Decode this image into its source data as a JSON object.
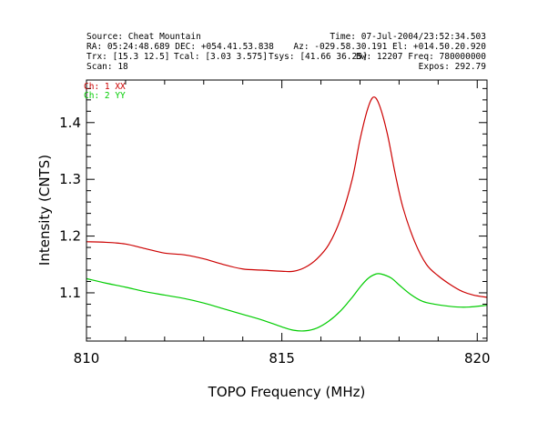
{
  "header": {
    "source": "Source: Cheat Mountain",
    "time": "Time: 07-Jul-2004/23:52:34.503",
    "ra_dec": "RA: 05:24:48.689 DEC: +054.41.53.838",
    "az_el": "Az: -029.58.30.191 El: +014.50.20.920",
    "trx": "Trx: [15.3 12.5]",
    "tcal": "Tcal: [3.03 3.575]",
    "tsys": "Tsys: [41.66 36.25]",
    "bw_freq": "Bw: 12207 Freq: 780000000",
    "scan": "Scan: 18",
    "expos": "Expos: 292.79"
  },
  "chart_data": {
    "type": "line",
    "xlabel": "TOPO Frequency (MHz)",
    "ylabel": "Intensity (CNTS)",
    "xlim": [
      810.0,
      820.25
    ],
    "ylim": [
      1.015,
      1.475
    ],
    "xticks": [
      810,
      815,
      820
    ],
    "yticks": [
      1.1,
      1.2,
      1.3,
      1.4
    ],
    "legend_position": "top-left",
    "series": [
      {
        "name": "Ch: 1 XX",
        "color": "#cc0000",
        "x": [
          810.0,
          810.5,
          811.0,
          811.5,
          812.0,
          812.5,
          813.0,
          813.5,
          814.0,
          814.5,
          815.0,
          815.3,
          815.6,
          815.9,
          816.2,
          816.5,
          816.8,
          817.0,
          817.2,
          817.35,
          817.5,
          817.7,
          817.9,
          818.1,
          818.4,
          818.7,
          819.0,
          819.3,
          819.6,
          819.9,
          820.25
        ],
        "y": [
          1.19,
          1.189,
          1.186,
          1.178,
          1.17,
          1.167,
          1.16,
          1.15,
          1.142,
          1.14,
          1.138,
          1.138,
          1.145,
          1.16,
          1.185,
          1.23,
          1.3,
          1.37,
          1.425,
          1.445,
          1.43,
          1.38,
          1.31,
          1.25,
          1.19,
          1.15,
          1.13,
          1.115,
          1.103,
          1.096,
          1.092
        ]
      },
      {
        "name": "Ch: 2 YY",
        "color": "#00cc00",
        "x": [
          810.0,
          810.5,
          811.0,
          811.5,
          812.0,
          812.5,
          813.0,
          813.5,
          814.0,
          814.5,
          815.0,
          815.3,
          815.6,
          815.9,
          816.2,
          816.5,
          816.8,
          817.0,
          817.2,
          817.4,
          817.55,
          817.8,
          818.0,
          818.3,
          818.6,
          818.9,
          819.2,
          819.5,
          819.8,
          820.25
        ],
        "y": [
          1.125,
          1.117,
          1.11,
          1.102,
          1.096,
          1.09,
          1.082,
          1.072,
          1.062,
          1.052,
          1.04,
          1.034,
          1.033,
          1.038,
          1.05,
          1.068,
          1.092,
          1.11,
          1.125,
          1.133,
          1.133,
          1.126,
          1.114,
          1.097,
          1.085,
          1.08,
          1.077,
          1.075,
          1.075,
          1.078
        ]
      }
    ]
  }
}
